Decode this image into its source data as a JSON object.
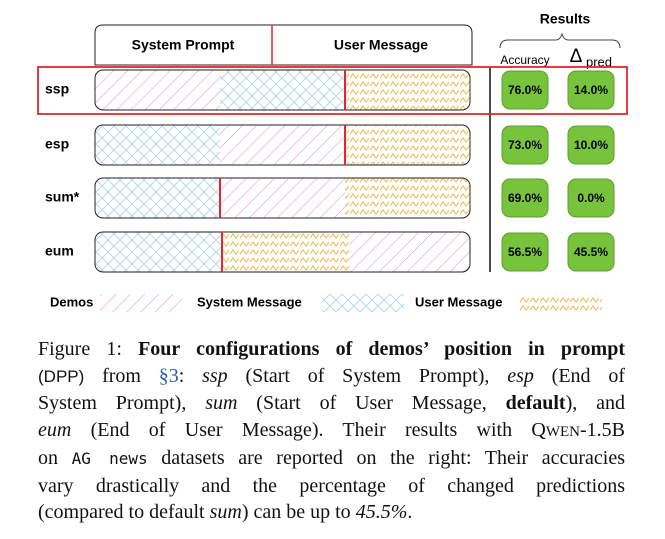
{
  "figure": {
    "header": {
      "left": "System Prompt",
      "right": "User Message"
    },
    "results": {
      "title": "Results",
      "accuracy_label": "Accuracy",
      "delta_symbol": "Δ",
      "delta_sub": "pred"
    },
    "rows": [
      {
        "label": "ssp",
        "accuracy": "76.0%",
        "delta": "14.0%"
      },
      {
        "label": "esp",
        "accuracy": "73.0%",
        "delta": "10.0%"
      },
      {
        "label": "sum*",
        "accuracy": "69.0%",
        "delta": "0.0%"
      },
      {
        "label": "eum",
        "accuracy": "56.5%",
        "delta": "45.5%"
      }
    ],
    "legend": [
      "Demos",
      "System Message",
      "User Message"
    ]
  },
  "caption": {
    "lines": [
      [
        {
          "t": "Figure 1: ",
          "s": "n"
        },
        {
          "t": "Four configurations of demos’ position in prompt",
          "s": "b"
        }
      ],
      [
        {
          "t": "(DPP)",
          "s": "sans"
        },
        {
          "t": " from ",
          "s": "n"
        },
        {
          "t": "§3",
          "s": "link"
        },
        {
          "t": ": ",
          "s": "n"
        },
        {
          "t": "ssp",
          "s": "i"
        },
        {
          "t": " (Start of System Prompt), ",
          "s": "n"
        },
        {
          "t": "esp",
          "s": "i"
        },
        {
          "t": " (End of",
          "s": "n"
        }
      ],
      [
        {
          "t": "System Prompt), ",
          "s": "n"
        },
        {
          "t": "sum",
          "s": "i"
        },
        {
          "t": " (Start of User Message, ",
          "s": "n"
        },
        {
          "t": "default",
          "s": "b"
        },
        {
          "t": "), and",
          "s": "n"
        }
      ],
      [
        {
          "t": "eum",
          "s": "i"
        },
        {
          "t": " (End of User Message). Their results with Q",
          "s": "n"
        },
        {
          "t": "WEN",
          "s": "sc"
        },
        {
          "t": "-1.5B",
          "s": "n"
        }
      ],
      [
        {
          "t": "on ",
          "s": "n"
        },
        {
          "t": "AG news",
          "s": "mono"
        },
        {
          "t": " datasets are reported on the right: Their accuracies",
          "s": "n"
        }
      ],
      [
        {
          "t": "vary drastically and the percentage of changed predictions",
          "s": "n"
        }
      ],
      [
        {
          "t": "(compared to default ",
          "s": "n"
        },
        {
          "t": "sum",
          "s": "i"
        },
        {
          "t": ") can be up to ",
          "s": "n"
        },
        {
          "t": "45.5%",
          "s": "i"
        },
        {
          "t": ".",
          "s": "n"
        }
      ]
    ]
  }
}
